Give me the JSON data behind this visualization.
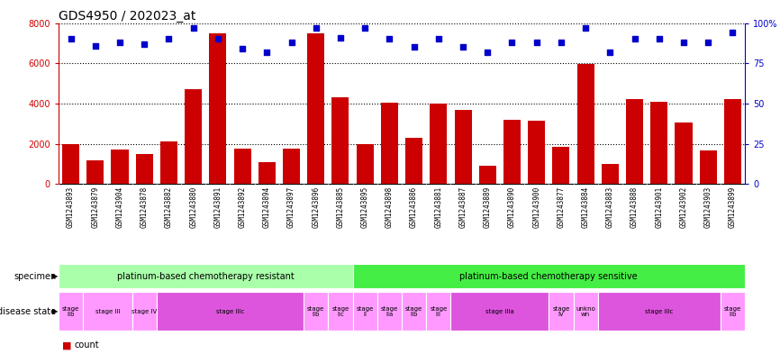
{
  "title": "GDS4950 / 202023_at",
  "samples": [
    "GSM1243893",
    "GSM1243879",
    "GSM1243904",
    "GSM1243878",
    "GSM1243882",
    "GSM1243880",
    "GSM1243891",
    "GSM1243892",
    "GSM1243894",
    "GSM1243897",
    "GSM1243896",
    "GSM1243885",
    "GSM1243895",
    "GSM1243898",
    "GSM1243886",
    "GSM1243881",
    "GSM1243887",
    "GSM1243889",
    "GSM1243890",
    "GSM1243900",
    "GSM1243877",
    "GSM1243884",
    "GSM1243883",
    "GSM1243888",
    "GSM1243901",
    "GSM1243902",
    "GSM1243903",
    "GSM1243899"
  ],
  "counts": [
    2000,
    1200,
    1700,
    1500,
    2100,
    4700,
    7500,
    1750,
    1100,
    1750,
    7500,
    4300,
    2000,
    4050,
    2300,
    4000,
    3700,
    900,
    3200,
    3150,
    1850,
    5950,
    1000,
    4200,
    4100,
    3050,
    1650,
    4200
  ],
  "percentile_ranks": [
    90,
    86,
    88,
    87,
    90,
    97,
    90,
    84,
    82,
    88,
    97,
    91,
    97,
    90,
    85,
    90,
    85,
    82,
    88,
    88,
    88,
    97,
    82,
    90,
    90,
    88,
    88,
    94
  ],
  "bar_color": "#cc0000",
  "dot_color": "#0000cc",
  "ylim_left": [
    0,
    8000
  ],
  "ylim_right": [
    0,
    100
  ],
  "yticks_left": [
    0,
    2000,
    4000,
    6000,
    8000
  ],
  "yticks_right": [
    0,
    25,
    50,
    75,
    100
  ],
  "specimen_label_color": "#000000",
  "specimen_groups": [
    {
      "label": "platinum-based chemotherapy resistant",
      "start": 0,
      "end": 11,
      "color": "#aaffaa"
    },
    {
      "label": "platinum-based chemotherapy sensitive",
      "start": 12,
      "end": 27,
      "color": "#44ee44"
    }
  ],
  "disease_state_groups": [
    {
      "label": "stage\nIIb",
      "start": 0,
      "end": 0,
      "color": "#ff99ff"
    },
    {
      "label": "stage III",
      "start": 1,
      "end": 2,
      "color": "#ff99ff"
    },
    {
      "label": "stage IV",
      "start": 3,
      "end": 3,
      "color": "#ff99ff"
    },
    {
      "label": "stage IIIc",
      "start": 4,
      "end": 9,
      "color": "#dd55dd"
    },
    {
      "label": "stage\nIIb",
      "start": 10,
      "end": 10,
      "color": "#ff99ff"
    },
    {
      "label": "stage\nIIc",
      "start": 11,
      "end": 11,
      "color": "#ff99ff"
    },
    {
      "label": "stage\nII",
      "start": 12,
      "end": 12,
      "color": "#ff99ff"
    },
    {
      "label": "stage\nIIa",
      "start": 13,
      "end": 13,
      "color": "#ff99ff"
    },
    {
      "label": "stage\nIIb",
      "start": 14,
      "end": 14,
      "color": "#ff99ff"
    },
    {
      "label": "stage\nIII",
      "start": 15,
      "end": 15,
      "color": "#ff99ff"
    },
    {
      "label": "stage IIIa",
      "start": 16,
      "end": 19,
      "color": "#dd55dd"
    },
    {
      "label": "stage\nIV",
      "start": 20,
      "end": 20,
      "color": "#ff99ff"
    },
    {
      "label": "unkno\nwn",
      "start": 21,
      "end": 21,
      "color": "#ff99ff"
    },
    {
      "label": "stage IIIc",
      "start": 22,
      "end": 26,
      "color": "#dd55dd"
    },
    {
      "label": "stage\nIIb",
      "start": 27,
      "end": 27,
      "color": "#ff99ff"
    }
  ],
  "background_color": "#ffffff",
  "plot_bg_color": "#ffffff"
}
